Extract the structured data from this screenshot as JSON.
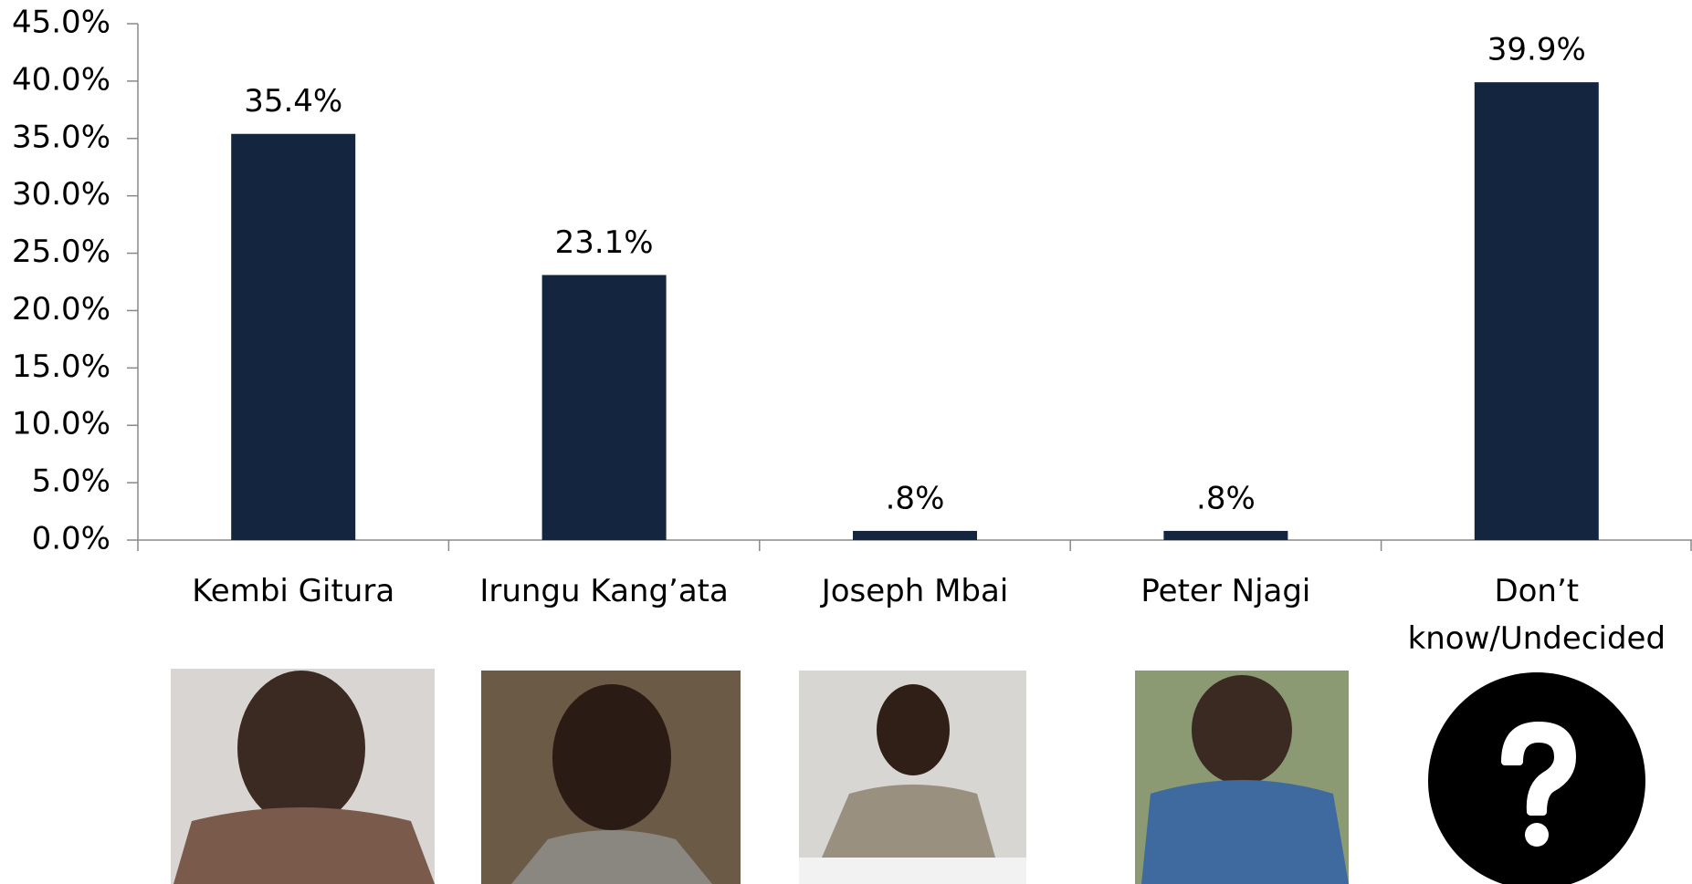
{
  "chart_data": {
    "type": "bar",
    "categories": [
      "Kembi Gitura",
      "Irungu Kang’ata",
      "Joseph Mbai",
      "Peter Njagi",
      "Don’t know/Undecided"
    ],
    "values": [
      35.4,
      23.1,
      0.8,
      0.8,
      39.9
    ],
    "value_labels": [
      "35.4%",
      "23.1%",
      ".8%",
      ".8%",
      "39.9%"
    ],
    "color": "#14253f",
    "ylim": [
      0,
      45
    ],
    "yticks": [
      {
        "value": 0,
        "label": "0.0%"
      },
      {
        "value": 5,
        "label": "5.0%"
      },
      {
        "value": 10,
        "label": "10.0%"
      },
      {
        "value": 15,
        "label": "15.0%"
      },
      {
        "value": 20,
        "label": "20.0%"
      },
      {
        "value": 25,
        "label": "25.0%"
      },
      {
        "value": 30,
        "label": "30.0%"
      },
      {
        "value": 35,
        "label": "35.0%"
      },
      {
        "value": 40,
        "label": "40.0%"
      },
      {
        "value": 45,
        "label": "45.0%"
      }
    ],
    "grid": false
  }
}
